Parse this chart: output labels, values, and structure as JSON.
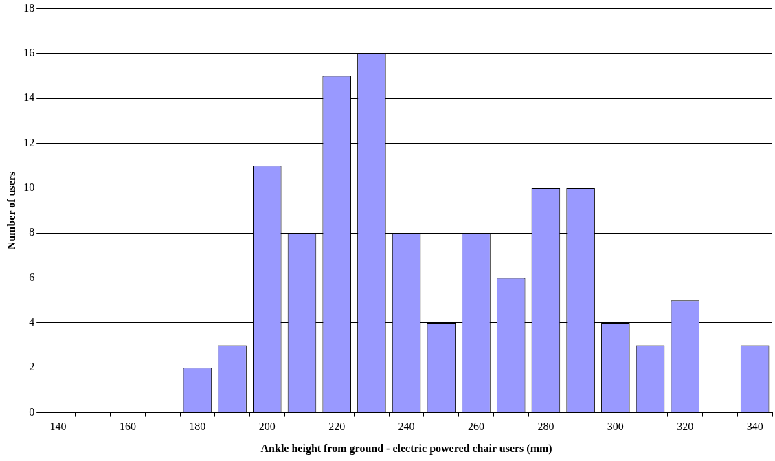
{
  "chart_data": {
    "type": "bar",
    "xlabel": "Ankle height from ground - electric powered chair users (mm)",
    "ylabel": "Number of users",
    "categories": [
      "140",
      null,
      "160",
      null,
      "180",
      null,
      "200",
      null,
      "220",
      null,
      "240",
      null,
      "260",
      null,
      "280",
      null,
      "300",
      null,
      "320",
      null,
      "340"
    ],
    "values": [
      0,
      0,
      0,
      0,
      2,
      3,
      11,
      8,
      15,
      16,
      8,
      4,
      8,
      6,
      10,
      10,
      4,
      3,
      5,
      0,
      3
    ],
    "color": "#9999ff",
    "ylim": [
      0,
      18
    ],
    "yticks": [
      0,
      2,
      4,
      6,
      8,
      10,
      12,
      14,
      16,
      18
    ],
    "grid": "y",
    "legend": false
  }
}
